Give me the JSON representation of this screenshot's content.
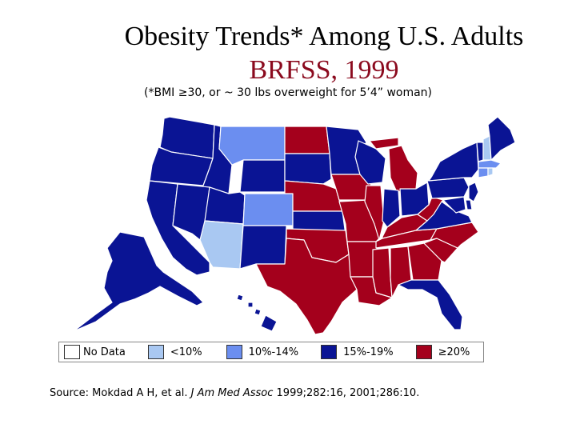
{
  "title": {
    "line1": "Obesity Trends* Among U.S. Adults",
    "line2": "BRFSS, 1999",
    "footnote": "(*BMI ≥30, or ~ 30 lbs overweight for 5’4” woman)"
  },
  "colors": {
    "title_line2": "#8b0a1e",
    "no_data": "#ffffff",
    "lt10": "#a9c8f2",
    "10to14": "#6b8ef0",
    "15to19": "#0a1494",
    "ge20": "#a4001c",
    "border": "#ffffff"
  },
  "legend": [
    {
      "label": "No Data",
      "color_key": "no_data"
    },
    {
      "label": "<10%",
      "color_key": "lt10"
    },
    {
      "label": "10%-14%",
      "color_key": "10to14"
    },
    {
      "label": "15%-19%",
      "color_key": "15to19"
    },
    {
      "label": "≥20%",
      "color_key": "ge20"
    }
  ],
  "source": {
    "prefix": "Source: Mokdad A H, et al. ",
    "journal": "J Am Med Assoc",
    "suffix": " 1999;282:16, 2001;286:10."
  },
  "states": [
    {
      "id": "WA",
      "category": "15to19"
    },
    {
      "id": "OR",
      "category": "15to19"
    },
    {
      "id": "CA",
      "category": "15to19"
    },
    {
      "id": "ID",
      "category": "15to19"
    },
    {
      "id": "NV",
      "category": "15to19"
    },
    {
      "id": "MT",
      "category": "10to14"
    },
    {
      "id": "WY",
      "category": "15to19"
    },
    {
      "id": "UT",
      "category": "15to19"
    },
    {
      "id": "AZ",
      "category": "lt10"
    },
    {
      "id": "CO",
      "category": "10to14"
    },
    {
      "id": "NM",
      "category": "15to19"
    },
    {
      "id": "ND",
      "category": "ge20"
    },
    {
      "id": "SD",
      "category": "15to19"
    },
    {
      "id": "NE",
      "category": "ge20"
    },
    {
      "id": "KS",
      "category": "15to19"
    },
    {
      "id": "OK",
      "category": "ge20"
    },
    {
      "id": "TX",
      "category": "ge20"
    },
    {
      "id": "MN",
      "category": "15to19"
    },
    {
      "id": "IA",
      "category": "ge20"
    },
    {
      "id": "MO",
      "category": "ge20"
    },
    {
      "id": "AR",
      "category": "ge20"
    },
    {
      "id": "LA",
      "category": "ge20"
    },
    {
      "id": "WI",
      "category": "15to19"
    },
    {
      "id": "IL",
      "category": "ge20"
    },
    {
      "id": "MI",
      "category": "ge20"
    },
    {
      "id": "IN",
      "category": "15to19"
    },
    {
      "id": "OH",
      "category": "15to19"
    },
    {
      "id": "KY",
      "category": "ge20"
    },
    {
      "id": "TN",
      "category": "ge20"
    },
    {
      "id": "MS",
      "category": "ge20"
    },
    {
      "id": "AL",
      "category": "ge20"
    },
    {
      "id": "GA",
      "category": "ge20"
    },
    {
      "id": "FL",
      "category": "15to19"
    },
    {
      "id": "SC",
      "category": "ge20"
    },
    {
      "id": "NC",
      "category": "ge20"
    },
    {
      "id": "VA",
      "category": "15to19"
    },
    {
      "id": "WV",
      "category": "ge20"
    },
    {
      "id": "PA",
      "category": "15to19"
    },
    {
      "id": "NY",
      "category": "15to19"
    },
    {
      "id": "VT",
      "category": "15to19"
    },
    {
      "id": "NH",
      "category": "lt10"
    },
    {
      "id": "ME",
      "category": "15to19"
    },
    {
      "id": "MA",
      "category": "10to14"
    },
    {
      "id": "CT",
      "category": "10to14"
    },
    {
      "id": "RI",
      "category": "lt10"
    },
    {
      "id": "NJ",
      "category": "15to19"
    },
    {
      "id": "DE",
      "category": "15to19"
    },
    {
      "id": "MD",
      "category": "15to19"
    },
    {
      "id": "AK",
      "category": "15to19"
    },
    {
      "id": "HI",
      "category": "15to19"
    }
  ]
}
